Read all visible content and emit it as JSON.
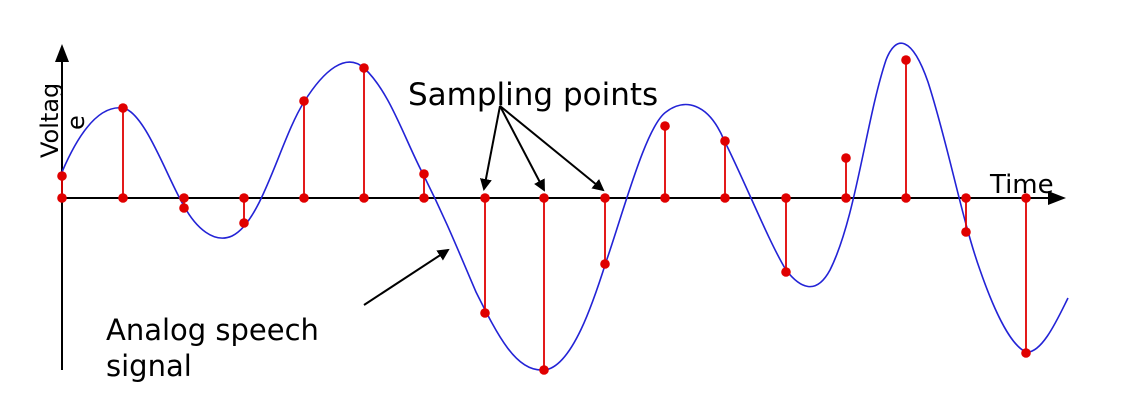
{
  "labels": {
    "sampling_points": "Sampling points",
    "time": "Time",
    "analog_line1": "Analog speech",
    "analog_line2": "signal",
    "voltage_main": "Voltag",
    "voltage_tail": "e"
  },
  "colors": {
    "axis": "#000000",
    "signal": "#2323d6",
    "sample": "#e00000"
  }
}
